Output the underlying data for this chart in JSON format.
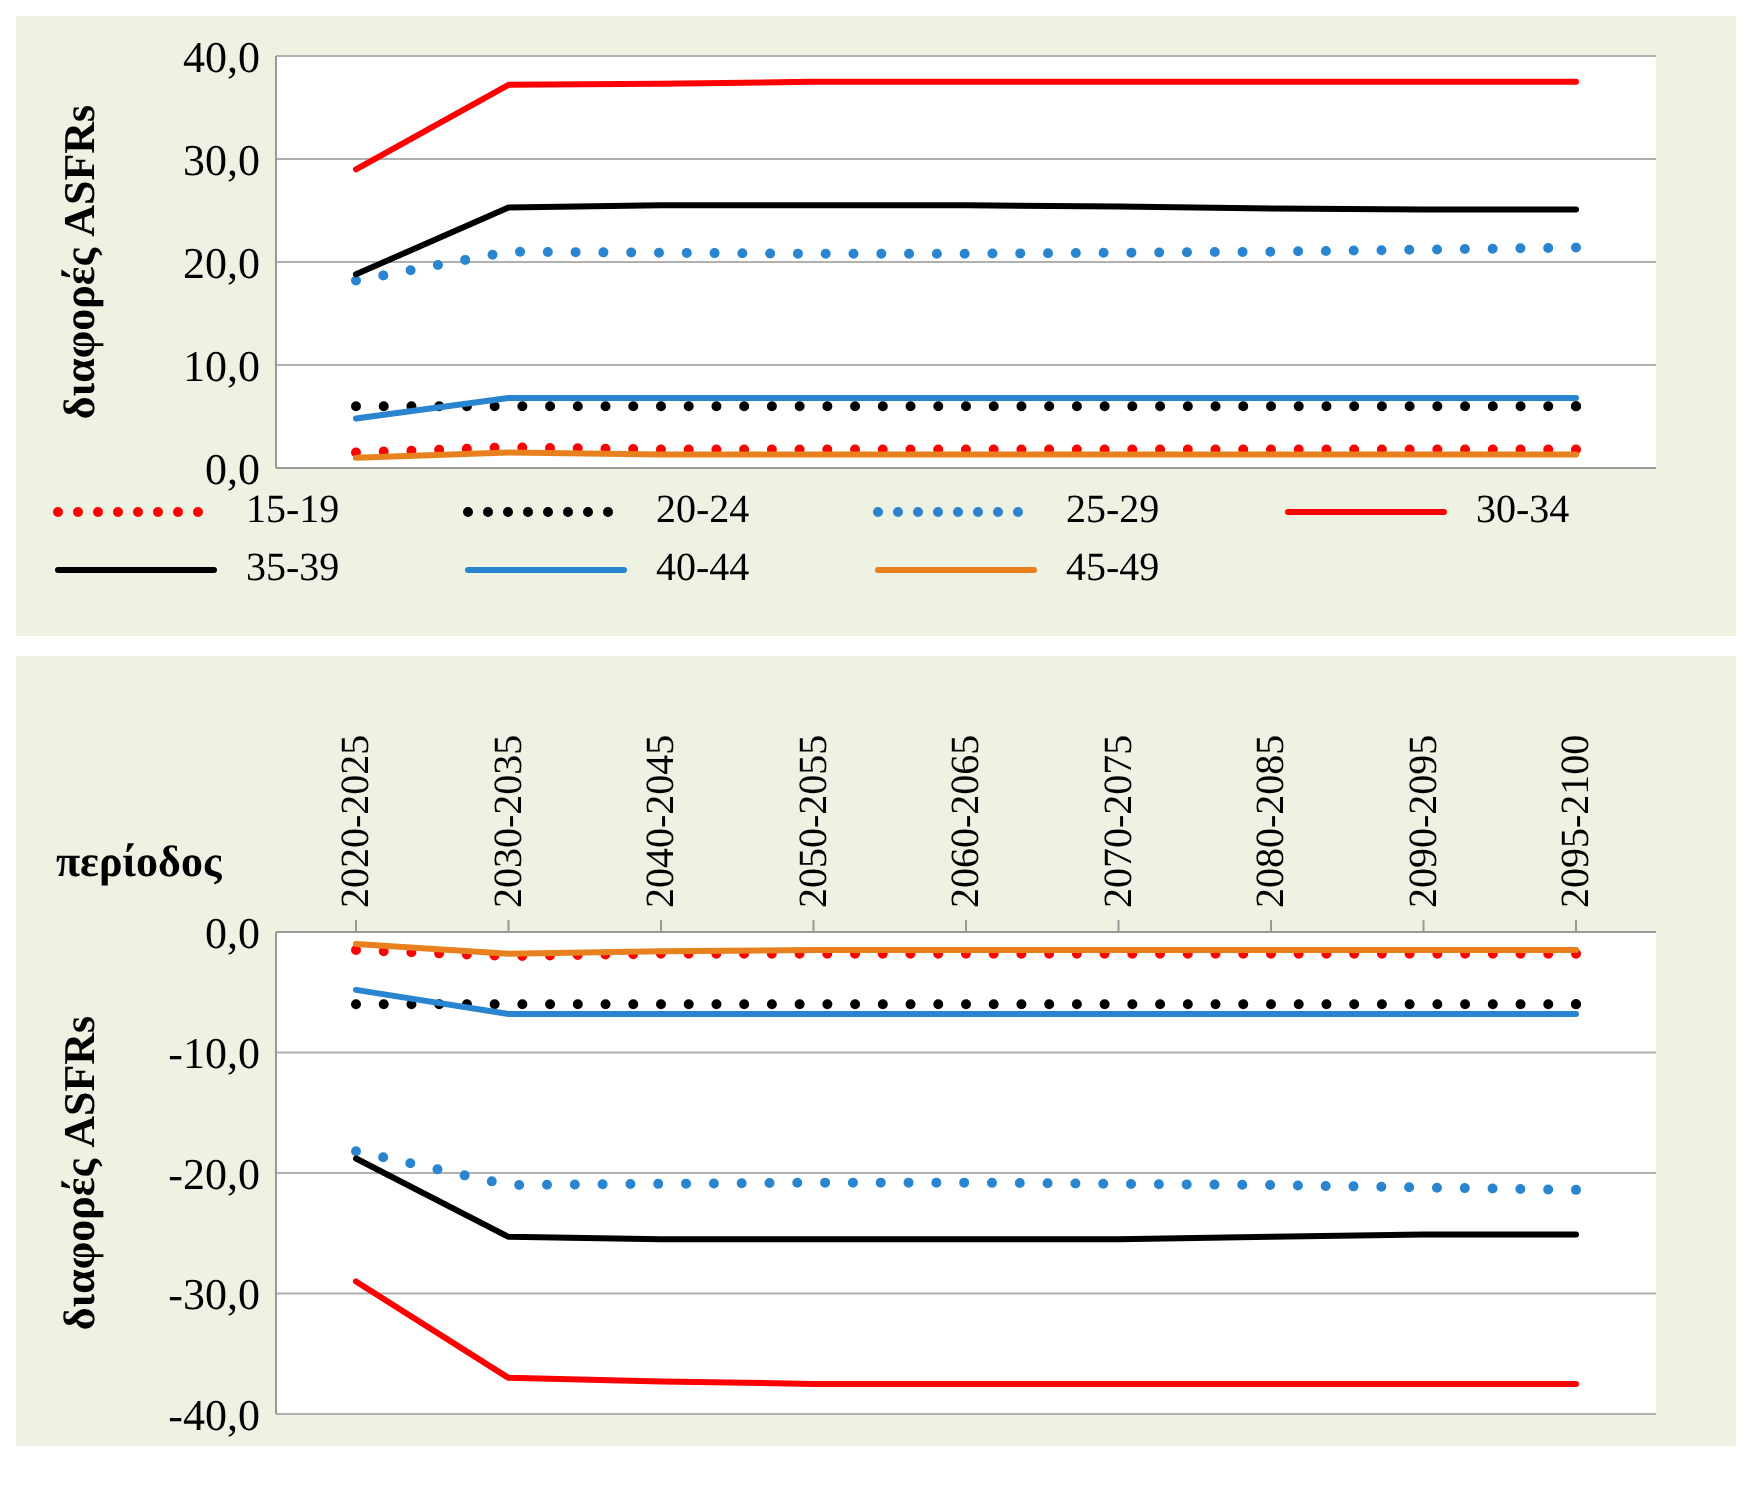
{
  "chart_data": [
    {
      "type": "line",
      "ylabel": "διαφορές ASFRs",
      "categories": [
        null,
        null,
        null,
        null,
        null,
        null,
        null,
        null,
        null
      ],
      "tick_labels": "y",
      "ylim": [
        0,
        40
      ],
      "yticks": [
        {
          "value": 0,
          "label": "0,0"
        },
        {
          "value": 10,
          "label": "10,0"
        },
        {
          "value": 20,
          "label": "20,0"
        },
        {
          "value": 30,
          "label": "30,0"
        },
        {
          "value": 40,
          "label": "40,0"
        }
      ],
      "grid": "y",
      "legend": "bottom",
      "marker": "none",
      "series": [
        {
          "name": "15-19",
          "color": "#ff0000",
          "line_style": "dotted",
          "values": [
            1.5,
            2.0,
            1.8,
            1.8,
            1.8,
            1.8,
            1.8,
            1.8,
            1.8
          ]
        },
        {
          "name": "20-24",
          "color": "#000000",
          "line_style": "dotted",
          "values": [
            6.0,
            6.0,
            6.0,
            6.0,
            6.0,
            6.0,
            6.0,
            6.0,
            6.0
          ]
        },
        {
          "name": "25-29",
          "color": "#2a85d0",
          "line_style": "dotted",
          "values": [
            18.2,
            21.0,
            20.9,
            20.8,
            20.8,
            20.9,
            21.0,
            21.2,
            21.4
          ]
        },
        {
          "name": "30-34",
          "color": "#ff0000",
          "line_style": "solid",
          "values": [
            29.0,
            37.2,
            37.3,
            37.5,
            37.5,
            37.5,
            37.5,
            37.5,
            37.5
          ]
        },
        {
          "name": "35-39",
          "color": "#000000",
          "line_style": "solid",
          "values": [
            18.8,
            25.3,
            25.5,
            25.5,
            25.5,
            25.4,
            25.2,
            25.1,
            25.1
          ]
        },
        {
          "name": "40-44",
          "color": "#2a85d0",
          "line_style": "solid",
          "values": [
            4.8,
            6.8,
            6.8,
            6.8,
            6.8,
            6.8,
            6.8,
            6.8,
            6.8
          ]
        },
        {
          "name": "45-49",
          "color": "#e8801e",
          "line_style": "solid",
          "values": [
            1.0,
            1.5,
            1.3,
            1.3,
            1.3,
            1.3,
            1.3,
            1.3,
            1.3
          ]
        }
      ]
    },
    {
      "type": "line",
      "xlabel": "περίοδος",
      "ylabel": "διαφορές ASFRs",
      "categories": [
        "2020-2025",
        "2030-2035",
        "2040-2045",
        "2050-2055",
        "2060-2065",
        "2070-2075",
        "2080-2085",
        "2090-2095",
        "2095-2100"
      ],
      "ylim": [
        -40,
        0
      ],
      "yticks": [
        {
          "value": -40,
          "label": "-40,0"
        },
        {
          "value": -30,
          "label": "-30,0"
        },
        {
          "value": -20,
          "label": "-20,0"
        },
        {
          "value": -10,
          "label": "-10,0"
        },
        {
          "value": 0,
          "label": "0,0"
        }
      ],
      "grid": "y",
      "marker": "none",
      "series": [
        {
          "color": "#ff0000",
          "line_style": "dotted",
          "values": [
            -1.5,
            -2.0,
            -1.8,
            -1.8,
            -1.8,
            -1.8,
            -1.8,
            -1.8,
            -1.8
          ]
        },
        {
          "color": "#000000",
          "line_style": "dotted",
          "values": [
            -6.0,
            -6.0,
            -6.0,
            -6.0,
            -6.0,
            -6.0,
            -6.0,
            -6.0,
            -6.0
          ]
        },
        {
          "color": "#2a85d0",
          "line_style": "dotted",
          "values": [
            -18.2,
            -21.0,
            -20.9,
            -20.8,
            -20.8,
            -20.9,
            -21.0,
            -21.2,
            -21.4
          ]
        },
        {
          "color": "#ff0000",
          "line_style": "solid",
          "values": [
            -29.0,
            -37.0,
            -37.3,
            -37.5,
            -37.5,
            -37.5,
            -37.5,
            -37.5,
            -37.5
          ]
        },
        {
          "color": "#000000",
          "line_style": "solid",
          "values": [
            -18.8,
            -25.3,
            -25.5,
            -25.5,
            -25.5,
            -25.5,
            -25.3,
            -25.1,
            -25.1
          ]
        },
        {
          "color": "#2a85d0",
          "line_style": "solid",
          "values": [
            -4.8,
            -6.8,
            -6.8,
            -6.8,
            -6.8,
            -6.8,
            -6.8,
            -6.8,
            -6.8
          ]
        },
        {
          "color": "#e8801e",
          "line_style": "solid",
          "values": [
            -1.0,
            -1.8,
            -1.6,
            -1.5,
            -1.5,
            -1.5,
            -1.5,
            -1.5,
            -1.5
          ]
        }
      ]
    }
  ]
}
